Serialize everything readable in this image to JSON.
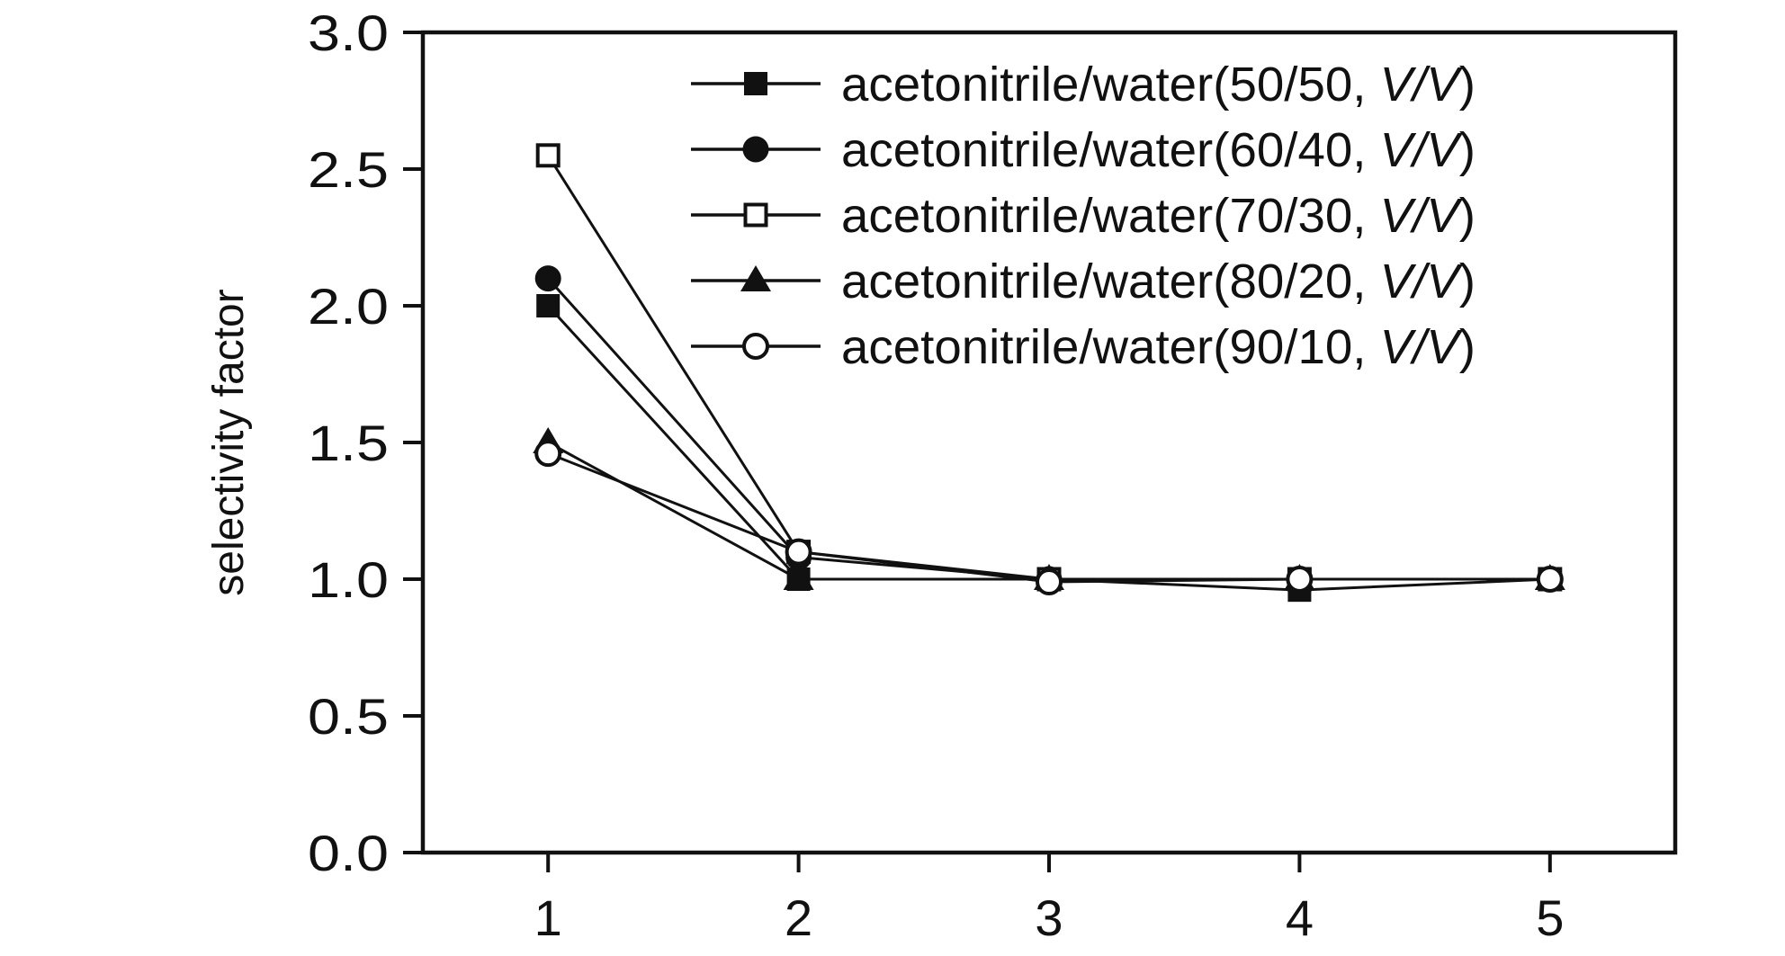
{
  "chart_data": {
    "type": "line",
    "title": "",
    "xlabel": "",
    "ylabel": "selectivity factor",
    "x": [
      1,
      2,
      3,
      4,
      5
    ],
    "x_tick_labels": [
      "1",
      "2",
      "3",
      "4",
      "5"
    ],
    "xlim": [
      0.5,
      5.5
    ],
    "ylim": [
      0,
      3.0
    ],
    "y_ticks": [
      0.0,
      0.5,
      1.0,
      1.5,
      2.0,
      2.5,
      3.0
    ],
    "y_tick_labels": [
      "0.0",
      "0.5",
      "1.0",
      "1.5",
      "2.0",
      "2.5",
      "3.0"
    ],
    "grid": false,
    "legend_position": "top-right",
    "colors": {
      "ink": "#111111",
      "background": "#ffffff"
    },
    "series": [
      {
        "name": "acetonitrile/water(50/50, V/V)",
        "ratio": "50/50",
        "marker": "filled-square",
        "values": [
          2.0,
          1.0,
          1.0,
          0.96,
          1.0
        ]
      },
      {
        "name": "acetonitrile/water(60/40, V/V)",
        "ratio": "60/40",
        "marker": "filled-circle",
        "values": [
          2.1,
          1.08,
          1.0,
          1.0,
          1.0
        ]
      },
      {
        "name": "acetonitrile/water(70/30, V/V)",
        "ratio": "70/30",
        "marker": "open-square",
        "values": [
          2.55,
          1.1,
          1.0,
          1.0,
          1.0
        ]
      },
      {
        "name": "acetonitrile/water(80/20, V/V)",
        "ratio": "80/20",
        "marker": "filled-triangle",
        "values": [
          1.5,
          1.0,
          1.0,
          1.0,
          1.0
        ]
      },
      {
        "name": "acetonitrile/water(90/10, V/V)",
        "ratio": "90/10",
        "marker": "open-circle",
        "values": [
          1.46,
          1.1,
          0.99,
          1.0,
          1.0
        ]
      }
    ]
  }
}
